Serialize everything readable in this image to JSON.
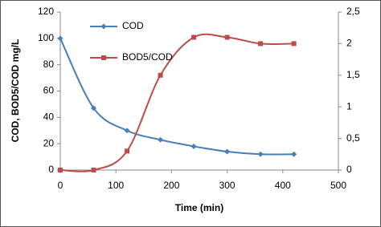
{
  "chart_data": {
    "type": "line",
    "x_label": "Time (min)",
    "y_label": "COD, BOD5/COD mg/L",
    "x": [
      0,
      60,
      120,
      180,
      240,
      300,
      360,
      420
    ],
    "series": [
      {
        "name": "COD",
        "color": "#4a7ebb",
        "marker": "diamond",
        "values": [
          100,
          47,
          30,
          23,
          18,
          14,
          12,
          12
        ]
      },
      {
        "name": "BOD5/COD",
        "color": "#be4b48",
        "marker": "square",
        "axis": "y2",
        "values": [
          0,
          0,
          0.3,
          1.5,
          2.1,
          2.1,
          2.0,
          2.0
        ]
      }
    ],
    "xlim": [
      0,
      500
    ],
    "xticks": [
      0,
      100,
      200,
      300,
      400,
      500
    ],
    "ylim": [
      0,
      120
    ],
    "yticks": [
      0,
      20,
      40,
      60,
      80,
      100,
      120
    ],
    "y2lim": [
      0,
      2.5
    ],
    "y2ticks": [
      0,
      {
        "value": 0.5,
        "label": "0,5"
      },
      1,
      {
        "value": 1.5,
        "label": "1,5"
      },
      2,
      {
        "value": 2.5,
        "label": "2,5"
      }
    ],
    "smooth": true
  }
}
